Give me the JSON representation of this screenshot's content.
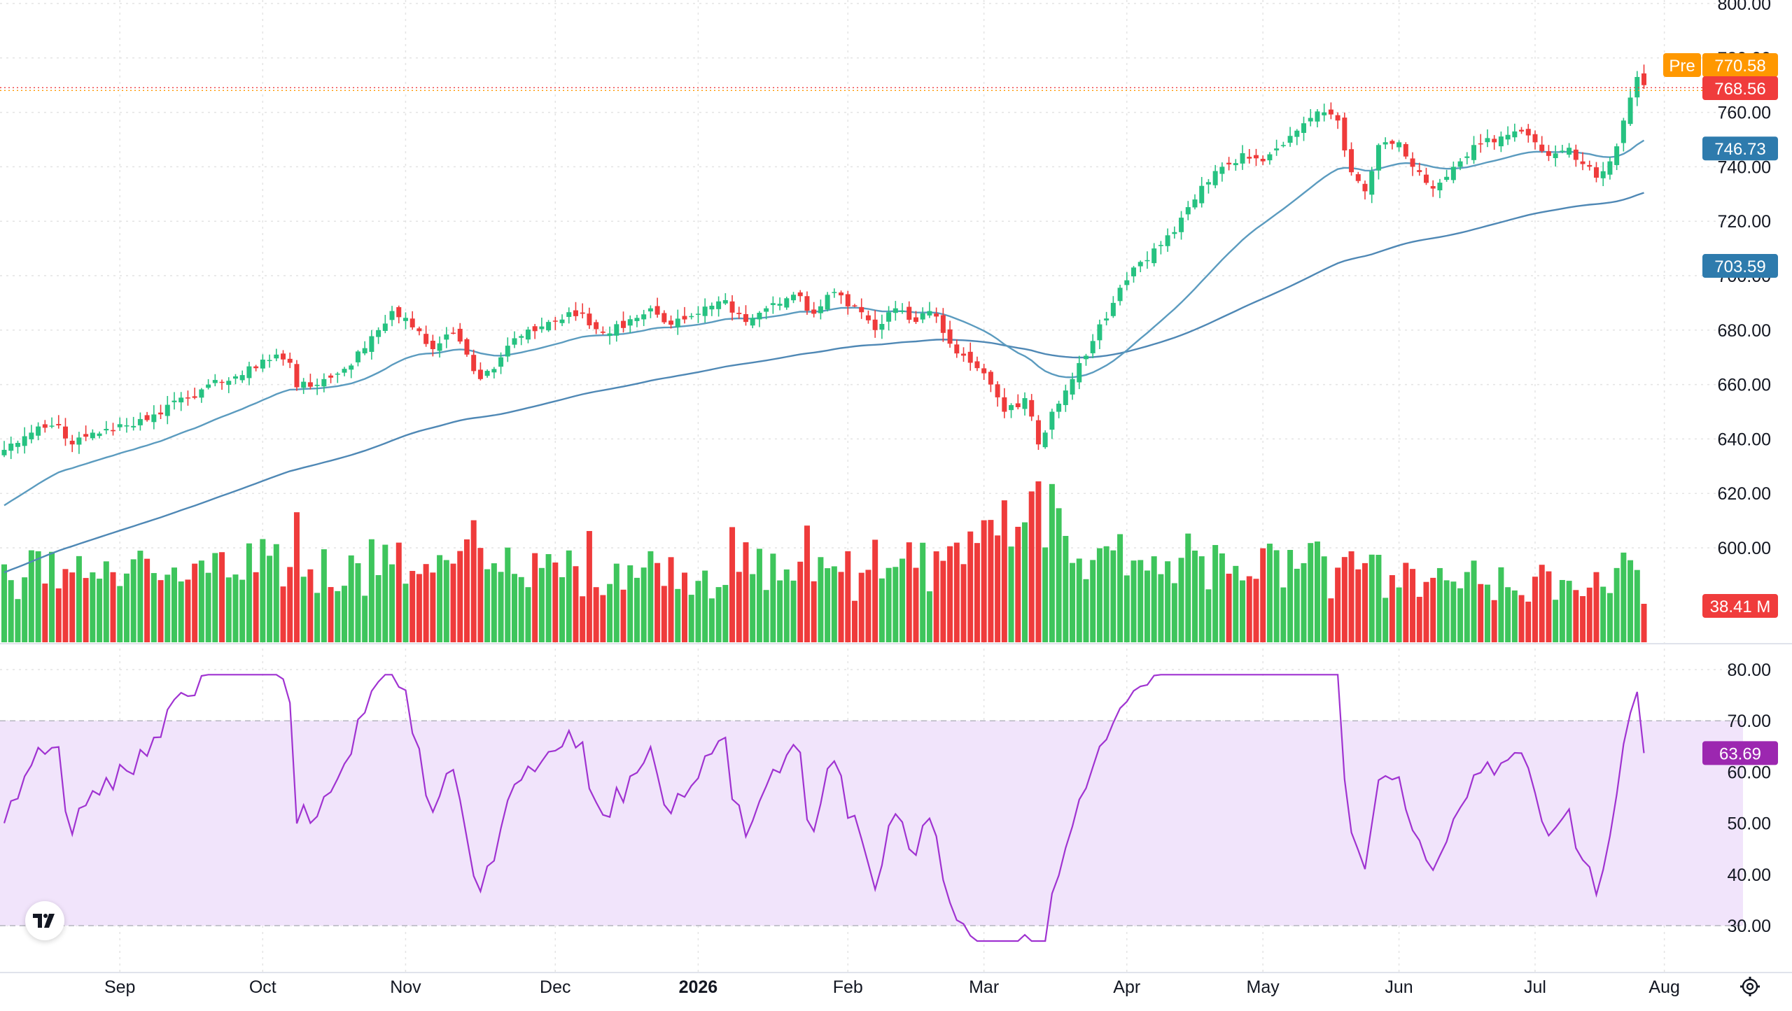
{
  "colors": {
    "up": "#26c281",
    "up_volume": "#3ec55c",
    "down": "#ef3b3b",
    "ma_fast": "#5b9bbf",
    "ma_slow": "#4f88b5",
    "rsi_line": "#a033d1",
    "rsi_band": "#f1e4fb",
    "grid": "#e4e4e4",
    "axis_text": "#131722",
    "pre_badge": "#ff9800",
    "last_badge": "#f03c3c",
    "ma_badge": "#2e7bad",
    "rsi_badge": "#9c27b0"
  },
  "icons": {
    "logo": "tradingview-logo-icon",
    "settings": "gear-icon"
  },
  "chart_data": [
    {
      "type": "candlestick",
      "panel": "price",
      "ylim": [
        600,
        800
      ],
      "y_ticks": [
        "800.00",
        "780.00",
        "760.00",
        "740.00",
        "720.00",
        "700.00",
        "680.00",
        "660.00",
        "640.00",
        "620.00",
        "600.00"
      ],
      "x_labels": [
        "Sep",
        "Oct",
        "Nov",
        "Dec",
        "2026",
        "Feb",
        "Mar",
        "Apr",
        "May",
        "Jun",
        "Jul",
        "Aug"
      ],
      "anchors": [
        [
          0,
          636
        ],
        [
          3,
          641
        ],
        [
          8,
          645
        ],
        [
          10,
          638
        ],
        [
          14,
          642
        ],
        [
          18,
          645
        ],
        [
          22,
          649
        ],
        [
          27,
          655
        ],
        [
          30,
          660
        ],
        [
          34,
          663
        ],
        [
          37,
          666
        ],
        [
          40,
          671
        ],
        [
          42,
          668
        ],
        [
          43,
          659
        ],
        [
          47,
          662
        ],
        [
          51,
          667
        ],
        [
          55,
          680
        ],
        [
          57,
          687
        ],
        [
          60,
          681
        ],
        [
          63,
          673
        ],
        [
          66,
          679
        ],
        [
          68,
          671
        ],
        [
          70,
          662
        ],
        [
          73,
          670
        ],
        [
          75,
          677
        ],
        [
          80,
          683
        ],
        [
          85,
          686
        ],
        [
          88,
          679
        ],
        [
          92,
          684
        ],
        [
          95,
          688
        ],
        [
          98,
          682
        ],
        [
          102,
          686
        ],
        [
          106,
          691
        ],
        [
          109,
          683
        ],
        [
          112,
          688
        ],
        [
          116,
          693
        ],
        [
          119,
          686
        ],
        [
          122,
          694
        ],
        [
          125,
          689
        ],
        [
          128,
          680
        ],
        [
          131,
          688
        ],
        [
          134,
          683
        ],
        [
          136,
          687
        ],
        [
          139,
          675
        ],
        [
          142,
          668
        ],
        [
          145,
          660
        ],
        [
          147,
          650
        ],
        [
          150,
          655
        ],
        [
          152,
          638
        ],
        [
          154,
          650
        ],
        [
          157,
          662
        ],
        [
          160,
          676
        ],
        [
          163,
          690
        ],
        [
          166,
          703
        ],
        [
          169,
          710
        ],
        [
          172,
          716
        ],
        [
          175,
          728
        ],
        [
          179,
          740
        ],
        [
          182,
          745
        ],
        [
          185,
          742
        ],
        [
          188,
          748
        ],
        [
          191,
          756
        ],
        [
          194,
          760
        ],
        [
          196,
          757
        ],
        [
          198,
          738
        ],
        [
          200,
          731
        ],
        [
          202,
          748
        ],
        [
          205,
          749
        ],
        [
          207,
          740
        ],
        [
          210,
          732
        ],
        [
          213,
          740
        ],
        [
          216,
          748
        ],
        [
          219,
          749
        ],
        [
          222,
          753
        ],
        [
          225,
          749
        ],
        [
          227,
          744
        ],
        [
          230,
          747
        ],
        [
          232,
          741
        ],
        [
          234,
          736
        ],
        [
          236,
          742
        ],
        [
          238,
          757
        ],
        [
          240,
          773
        ],
        [
          241,
          770
        ]
      ],
      "ma50_start": 614,
      "ma200_start": 590,
      "ma50_last": "746.73",
      "ma200_last": "703.59",
      "last_price": "768.56",
      "premarket_label": "Pre",
      "premarket_price": "770.58",
      "grid": true
    },
    {
      "type": "bar",
      "panel": "volume",
      "series": "volume",
      "unit": "M",
      "last_value": "38.41 M"
    },
    {
      "type": "line",
      "panel": "rsi",
      "ylim": [
        26,
        84
      ],
      "y_ticks": [
        "80.00",
        "70.00",
        "60.00",
        "50.00",
        "40.00",
        "30.00"
      ],
      "band": [
        30,
        70
      ],
      "last_value": "63.69"
    }
  ]
}
